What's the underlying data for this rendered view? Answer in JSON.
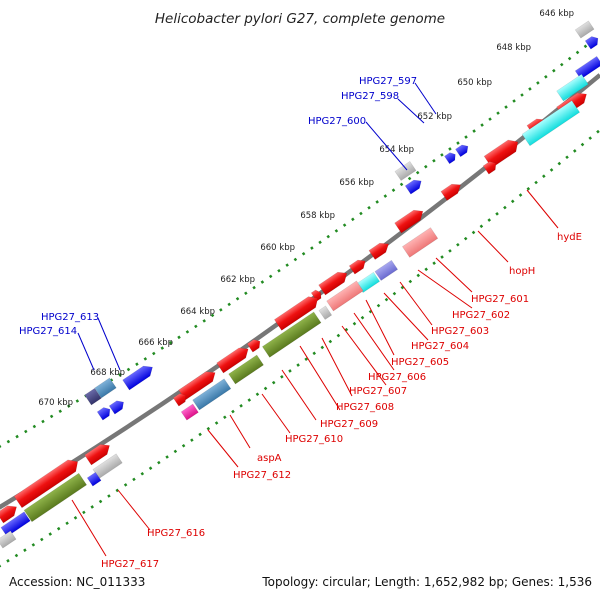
{
  "title": "Helicobacter pylori G27, complete genome",
  "footer": {
    "accession": "Accession: NC_011333",
    "topology": "Topology: circular; Length: 1,652,982 bp; Genes: 1,536"
  },
  "colors": {
    "backbone": "#8a8a8a",
    "ticks": "#228b22",
    "forward_label": "#0000cc",
    "reverse_label": "#dd0000"
  },
  "ticks": [
    "646 kbp",
    "648 kbp",
    "650 kbp",
    "652 kbp",
    "654 kbp",
    "656 kbp",
    "658 kbp",
    "660 kbp",
    "662 kbp",
    "664 kbp",
    "666 kbp",
    "668 kbp",
    "670 kbp"
  ],
  "forward_genes": [
    "HPG27_597",
    "HPG27_598",
    "HPG27_600",
    "HPG27_613",
    "HPG27_614"
  ],
  "reverse_genes": [
    "hydE",
    "hopH",
    "HPG27_601",
    "HPG27_602",
    "HPG27_603",
    "HPG27_604",
    "HPG27_605",
    "HPG27_606",
    "HPG27_607",
    "HPG27_608",
    "HPG27_609",
    "HPG27_610",
    "aspA",
    "HPG27_612",
    "HPG27_616",
    "HPG27_617"
  ]
}
